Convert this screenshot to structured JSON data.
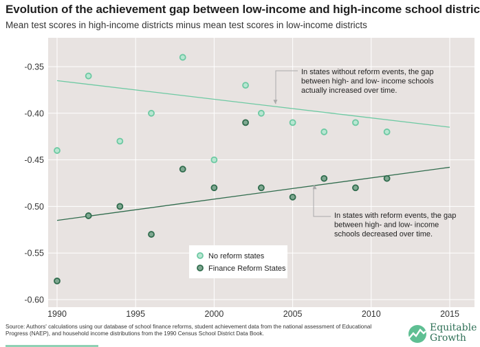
{
  "header": {
    "title": "Evolution of the achievement gap between low-income and high-income school districts",
    "subtitle": "Mean test scores in high-income districts minus mean test scores in low-income districts"
  },
  "footer": {
    "source": "Source: Authors' calculations using our database of school finance reforms, student achievement data from the national assessment of Educational Progress (NAEP), and household income distributions from the 1990 Census School District Data Book.",
    "logo_line1": "Equitable",
    "logo_line2": "Growth"
  },
  "colors": {
    "plot_bg": "#e8e3e1",
    "grid": "#ffffff",
    "no_reform": "#6cc9a2",
    "no_reform_fill": "#b9e6d2",
    "reform": "#2f6b4c",
    "reform_fill": "#7fa891",
    "annot_line": "#aaaaaa",
    "logo": "#2d6f55"
  },
  "chart_data": {
    "type": "scatter",
    "title": "Evolution of the achievement gap between low-income and high-income school districts",
    "subtitle": "Mean test scores in high-income districts minus mean test scores in low-income districts",
    "xlabel": "",
    "ylabel": "",
    "xlim": [
      1990,
      2015
    ],
    "ylim": [
      -0.6,
      -0.33
    ],
    "xticks": [
      1990,
      1995,
      2000,
      2005,
      2010,
      2015
    ],
    "yticks": [
      -0.35,
      -0.4,
      -0.45,
      -0.5,
      -0.55,
      -0.6
    ],
    "ytick_labels": [
      "-0.35",
      "-0.40",
      "-0.45",
      "-0.50",
      "-0.55",
      "-0.60"
    ],
    "grid": "x-and-y",
    "legend_position": "bottom-center",
    "series": [
      {
        "name": "No reform states",
        "x": [
          1990,
          1992,
          1994,
          1996,
          1998,
          2000,
          2002,
          2003,
          2005,
          2007,
          2009,
          2011
        ],
        "y": [
          -0.44,
          -0.36,
          -0.43,
          -0.4,
          -0.34,
          -0.45,
          -0.37,
          -0.4,
          -0.41,
          -0.42,
          -0.41,
          -0.42
        ],
        "trend": {
          "x": [
            1990,
            2015
          ],
          "y": [
            -0.365,
            -0.415
          ]
        }
      },
      {
        "name": "Finance Reform States",
        "x": [
          1990,
          1992,
          1994,
          1996,
          1998,
          2000,
          2002,
          2003,
          2005,
          2007,
          2009,
          2011
        ],
        "y": [
          -0.58,
          -0.51,
          -0.5,
          -0.53,
          -0.46,
          -0.48,
          -0.41,
          -0.48,
          -0.49,
          -0.47,
          -0.48,
          -0.47
        ],
        "trend": {
          "x": [
            1990,
            2015
          ],
          "y": [
            -0.515,
            -0.458
          ]
        }
      }
    ],
    "annotations": [
      {
        "lines": [
          "In states without reform events, the gap",
          "between high- and low- income schools",
          "actually increased over time."
        ],
        "target": {
          "x": 2003.9,
          "y": -0.39
        }
      },
      {
        "lines": [
          "In states with reform events, the gap",
          "between high- and low- income",
          "schools decreased over time."
        ],
        "target": {
          "x": 2006.4,
          "y": -0.477
        }
      }
    ]
  }
}
